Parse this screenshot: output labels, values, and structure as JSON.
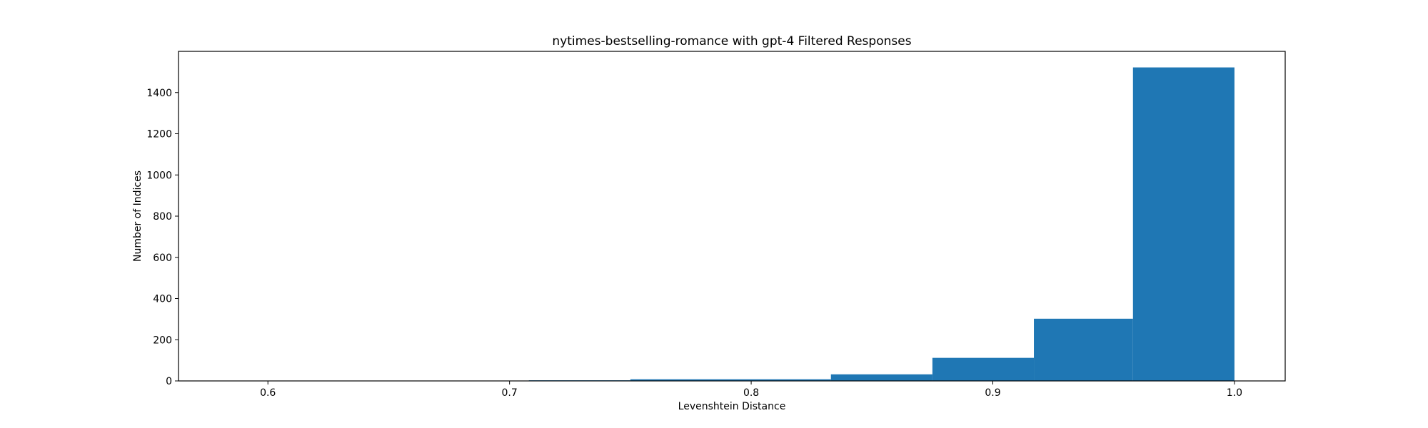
{
  "chart_data": {
    "type": "bar",
    "title": "nytimes-bestselling-romance with gpt-4 Filtered Responses",
    "xlabel": "Levenshtein Distance",
    "ylabel": "Number of Indices",
    "xlim": [
      0.563,
      1.021
    ],
    "ylim": [
      0,
      1600
    ],
    "xticks": [
      0.6,
      0.7,
      0.8,
      0.9,
      1.0
    ],
    "xtick_labels": [
      "0.6",
      "0.7",
      "0.8",
      "0.9",
      "1.0"
    ],
    "yticks": [
      0,
      200,
      400,
      600,
      800,
      1000,
      1200,
      1400
    ],
    "ytick_labels": [
      "0",
      "200",
      "400",
      "600",
      "800",
      "1000",
      "1200",
      "1400"
    ],
    "bin_edges": [
      0.583,
      0.625,
      0.667,
      0.708,
      0.75,
      0.792,
      0.833,
      0.875,
      0.917,
      0.958,
      1.0
    ],
    "values": [
      1,
      0,
      0,
      3,
      8,
      8,
      32,
      112,
      302,
      1522
    ],
    "bar_color": "#1f77b4",
    "grid": false,
    "legend": false
  }
}
